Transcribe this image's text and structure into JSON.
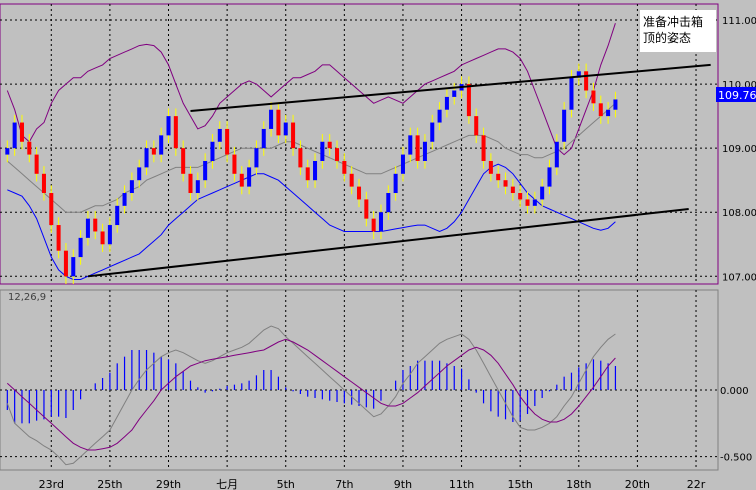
{
  "chart_data": [
    {
      "type": "candlestick",
      "title": "",
      "annotation": [
        "准备冲击箱",
        "顶的姿态"
      ],
      "last_price_label": "109.76",
      "y_ticks": [
        "111.00",
        "110.00",
        "109.00",
        "108.00",
        "107.00"
      ],
      "ylim": [
        106.88,
        111.25
      ],
      "x_ticks": [
        {
          "label": "23rd",
          "x": 6
        },
        {
          "label": "25th",
          "x": 14
        },
        {
          "label": "29th",
          "x": 22
        },
        {
          "label": "七月",
          "x": 30
        },
        {
          "label": "5th",
          "x": 38
        },
        {
          "label": "7th",
          "x": 46
        },
        {
          "label": "9th",
          "x": 54
        },
        {
          "label": "11th",
          "x": 62
        },
        {
          "label": "15th",
          "x": 70
        },
        {
          "label": "18th",
          "x": 78
        },
        {
          "label": "20th",
          "x": 86
        },
        {
          "label": "22r",
          "x": 94
        }
      ],
      "x_range": [
        -1,
        97
      ],
      "series": [
        {
          "name": "close",
          "values": [
            109.0,
            109.4,
            109.1,
            108.9,
            108.6,
            108.3,
            107.8,
            107.4,
            107.0,
            107.3,
            107.6,
            107.9,
            107.7,
            107.5,
            107.8,
            108.1,
            108.3,
            108.5,
            108.7,
            109.0,
            108.9,
            109.2,
            109.5,
            109.0,
            108.6,
            108.3,
            108.5,
            108.8,
            109.1,
            109.3,
            108.9,
            108.6,
            108.4,
            108.7,
            109.0,
            109.3,
            109.6,
            109.2,
            109.4,
            109.0,
            108.7,
            108.5,
            108.8,
            109.1,
            109.0,
            108.8,
            108.6,
            108.4,
            108.2,
            107.9,
            107.7,
            108.0,
            108.3,
            108.6,
            108.9,
            109.2,
            108.8,
            109.1,
            109.4,
            109.6,
            109.8,
            109.9,
            110.0,
            109.5,
            109.2,
            108.8,
            108.6,
            108.5,
            108.4,
            108.3,
            108.2,
            108.1,
            108.2,
            108.4,
            108.7,
            109.1,
            109.6,
            110.1,
            110.2,
            109.9,
            109.7,
            109.5,
            109.6,
            109.76
          ]
        },
        {
          "name": "bollinger_upper",
          "values": [
            109.9,
            109.6,
            109.2,
            109.1,
            109.3,
            109.4,
            109.7,
            109.9,
            110.0,
            110.1,
            110.1,
            110.2,
            110.25,
            110.3,
            110.4,
            110.45,
            110.5,
            110.55,
            110.6,
            110.62,
            110.6,
            110.5,
            110.3,
            110.0,
            109.7,
            109.5,
            109.3,
            109.35,
            109.5,
            109.7,
            109.8,
            109.9,
            110.0,
            110.05,
            110.0,
            109.9,
            109.8,
            109.9,
            110.0,
            110.1,
            110.1,
            110.15,
            110.2,
            110.3,
            110.3,
            110.2,
            110.1,
            110.0,
            109.9,
            109.8,
            109.7,
            109.75,
            109.8,
            109.75,
            109.7,
            109.8,
            109.9,
            110.0,
            110.05,
            110.1,
            110.15,
            110.2,
            110.3,
            110.35,
            110.4,
            110.45,
            110.5,
            110.55,
            110.55,
            110.5,
            110.4,
            110.2,
            109.9,
            109.6,
            109.3,
            109.0,
            108.9,
            109.0,
            109.3,
            109.6,
            109.9,
            110.3,
            110.6,
            110.95
          ]
        },
        {
          "name": "bollinger_middle",
          "values": [
            108.8,
            108.7,
            108.6,
            108.5,
            108.4,
            108.3,
            108.2,
            108.1,
            108.0,
            108.0,
            108.0,
            108.05,
            108.1,
            108.1,
            108.15,
            108.2,
            108.3,
            108.35,
            108.4,
            108.5,
            108.55,
            108.6,
            108.65,
            108.7,
            108.7,
            108.7,
            108.7,
            108.75,
            108.8,
            108.85,
            108.9,
            108.95,
            109.0,
            109.0,
            109.0,
            109.0,
            109.0,
            109.05,
            109.1,
            109.1,
            109.05,
            109.0,
            108.95,
            108.9,
            108.85,
            108.8,
            108.75,
            108.7,
            108.65,
            108.6,
            108.6,
            108.6,
            108.65,
            108.7,
            108.75,
            108.8,
            108.85,
            108.9,
            108.95,
            109.0,
            109.05,
            109.1,
            109.15,
            109.2,
            109.2,
            109.2,
            109.15,
            109.1,
            109.0,
            108.95,
            108.9,
            108.9,
            108.85,
            108.85,
            108.9,
            108.95,
            109.0,
            109.1,
            109.2,
            109.3,
            109.4,
            109.5,
            109.6,
            109.7
          ]
        },
        {
          "name": "bollinger_lower",
          "values": [
            108.35,
            108.3,
            108.25,
            108.1,
            107.9,
            107.6,
            107.3,
            107.1,
            107.0,
            106.95,
            106.95,
            107.0,
            107.05,
            107.1,
            107.15,
            107.2,
            107.25,
            107.3,
            107.35,
            107.45,
            107.55,
            107.65,
            107.8,
            107.9,
            108.0,
            108.1,
            108.2,
            108.25,
            108.3,
            108.35,
            108.4,
            108.45,
            108.5,
            108.55,
            108.6,
            108.6,
            108.55,
            108.5,
            108.4,
            108.3,
            108.2,
            108.1,
            108.0,
            107.9,
            107.8,
            107.75,
            107.7,
            107.7,
            107.7,
            107.7,
            107.7,
            107.7,
            107.72,
            107.74,
            107.76,
            107.78,
            107.8,
            107.8,
            107.75,
            107.7,
            107.75,
            107.85,
            108.0,
            108.2,
            108.4,
            108.6,
            108.7,
            108.75,
            108.7,
            108.6,
            108.45,
            108.3,
            108.2,
            108.1,
            108.05,
            108.0,
            107.95,
            107.9,
            107.85,
            107.8,
            107.75,
            107.72,
            107.75,
            107.85
          ]
        }
      ],
      "channel_lines": [
        {
          "x": [
            11,
            93
          ],
          "y": [
            107.0,
            108.05
          ]
        },
        {
          "x": [
            25,
            96
          ],
          "y": [
            109.58,
            110.3
          ]
        }
      ]
    },
    {
      "type": "macd",
      "params_label": "12,26,9",
      "y_ticks": [
        "0.000",
        "-0.500"
      ],
      "ylim": [
        -0.6,
        0.75
      ],
      "x_range": [
        -1,
        97
      ],
      "series": [
        {
          "name": "macd",
          "values": [
            -0.1,
            -0.25,
            -0.3,
            -0.35,
            -0.38,
            -0.42,
            -0.45,
            -0.5,
            -0.56,
            -0.55,
            -0.5,
            -0.45,
            -0.4,
            -0.35,
            -0.3,
            -0.2,
            -0.1,
            0.0,
            0.08,
            0.15,
            0.2,
            0.25,
            0.28,
            0.3,
            0.28,
            0.25,
            0.22,
            0.2,
            0.22,
            0.25,
            0.28,
            0.3,
            0.32,
            0.35,
            0.4,
            0.45,
            0.48,
            0.46,
            0.4,
            0.35,
            0.3,
            0.25,
            0.2,
            0.15,
            0.1,
            0.05,
            0.0,
            -0.05,
            -0.1,
            -0.15,
            -0.2,
            -0.18,
            -0.12,
            -0.05,
            0.05,
            0.12,
            0.2,
            0.25,
            0.3,
            0.35,
            0.38,
            0.4,
            0.42,
            0.38,
            0.3,
            0.2,
            0.1,
            0.0,
            -0.1,
            -0.2,
            -0.28,
            -0.3,
            -0.3,
            -0.28,
            -0.25,
            -0.2,
            -0.12,
            -0.05,
            0.05,
            0.15,
            0.25,
            0.32,
            0.38,
            0.42
          ]
        },
        {
          "name": "signal",
          "values": [
            0.05,
            0.0,
            -0.05,
            -0.1,
            -0.15,
            -0.2,
            -0.25,
            -0.3,
            -0.35,
            -0.4,
            -0.43,
            -0.45,
            -0.45,
            -0.44,
            -0.43,
            -0.4,
            -0.35,
            -0.3,
            -0.22,
            -0.15,
            -0.08,
            0.0,
            0.05,
            0.1,
            0.14,
            0.18,
            0.2,
            0.22,
            0.23,
            0.24,
            0.25,
            0.26,
            0.27,
            0.28,
            0.29,
            0.3,
            0.33,
            0.36,
            0.38,
            0.36,
            0.33,
            0.3,
            0.26,
            0.22,
            0.18,
            0.14,
            0.1,
            0.06,
            0.02,
            -0.02,
            -0.06,
            -0.1,
            -0.12,
            -0.12,
            -0.1,
            -0.06,
            -0.02,
            0.03,
            0.08,
            0.13,
            0.18,
            0.22,
            0.26,
            0.3,
            0.32,
            0.3,
            0.26,
            0.2,
            0.12,
            0.04,
            -0.05,
            -0.12,
            -0.18,
            -0.22,
            -0.24,
            -0.24,
            -0.22,
            -0.18,
            -0.12,
            -0.05,
            0.02,
            0.1,
            0.18,
            0.24
          ]
        }
      ]
    }
  ],
  "colors": {
    "background": "#c0c0c0",
    "grid": "#000000",
    "bull_candle": "#0000ff",
    "bear_candle": "#ff0000",
    "wick": "#ffff00",
    "bollinger_band": "#800080",
    "bollinger_middle": "#808080",
    "lower_band": "#0000ff",
    "macd_bars": "#0000ff",
    "price_tag_bg": "#0000ff",
    "price_tag_text": "#ffffff"
  }
}
